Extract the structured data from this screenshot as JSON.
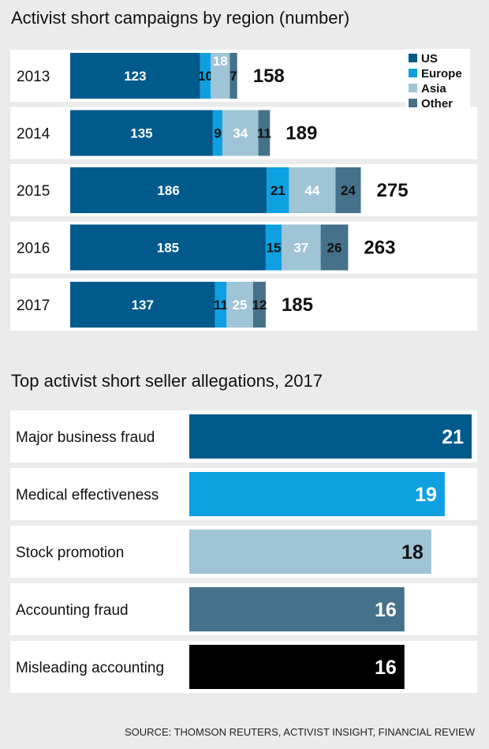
{
  "chart_data": [
    {
      "type": "bar",
      "orientation": "horizontal",
      "stacked": true,
      "title": "Activist short campaigns by region (number)",
      "categories": [
        "2013",
        "2014",
        "2015",
        "2016",
        "2017"
      ],
      "series": [
        {
          "name": "US",
          "color": "#005a8c",
          "values": [
            123,
            135,
            186,
            185,
            137
          ]
        },
        {
          "name": "Europe",
          "color": "#0ea0e0",
          "values": [
            10,
            9,
            21,
            15,
            11
          ]
        },
        {
          "name": "Asia",
          "color": "#9ec4d6",
          "values": [
            18,
            34,
            44,
            37,
            25
          ]
        },
        {
          "name": "Other",
          "color": "#46718a",
          "values": [
            7,
            11,
            24,
            26,
            12
          ]
        }
      ],
      "totals": [
        158,
        189,
        275,
        263,
        185
      ],
      "legend_position": "top-right"
    },
    {
      "type": "bar",
      "orientation": "horizontal",
      "title": "Top activist short seller allegations, 2017",
      "categories": [
        "Major business fraud",
        "Medical effectiveness",
        "Stock promotion",
        "Accounting fraud",
        "Misleading accounting"
      ],
      "values": [
        21,
        19,
        18,
        16,
        16
      ],
      "colors": [
        "#005a8c",
        "#0ea0e0",
        "#9ec4d6",
        "#46718a",
        "#000000"
      ]
    }
  ],
  "source": "SOURCE: THOMSON REUTERS, ACTIVIST INSIGHT, FINANCIAL REVIEW"
}
